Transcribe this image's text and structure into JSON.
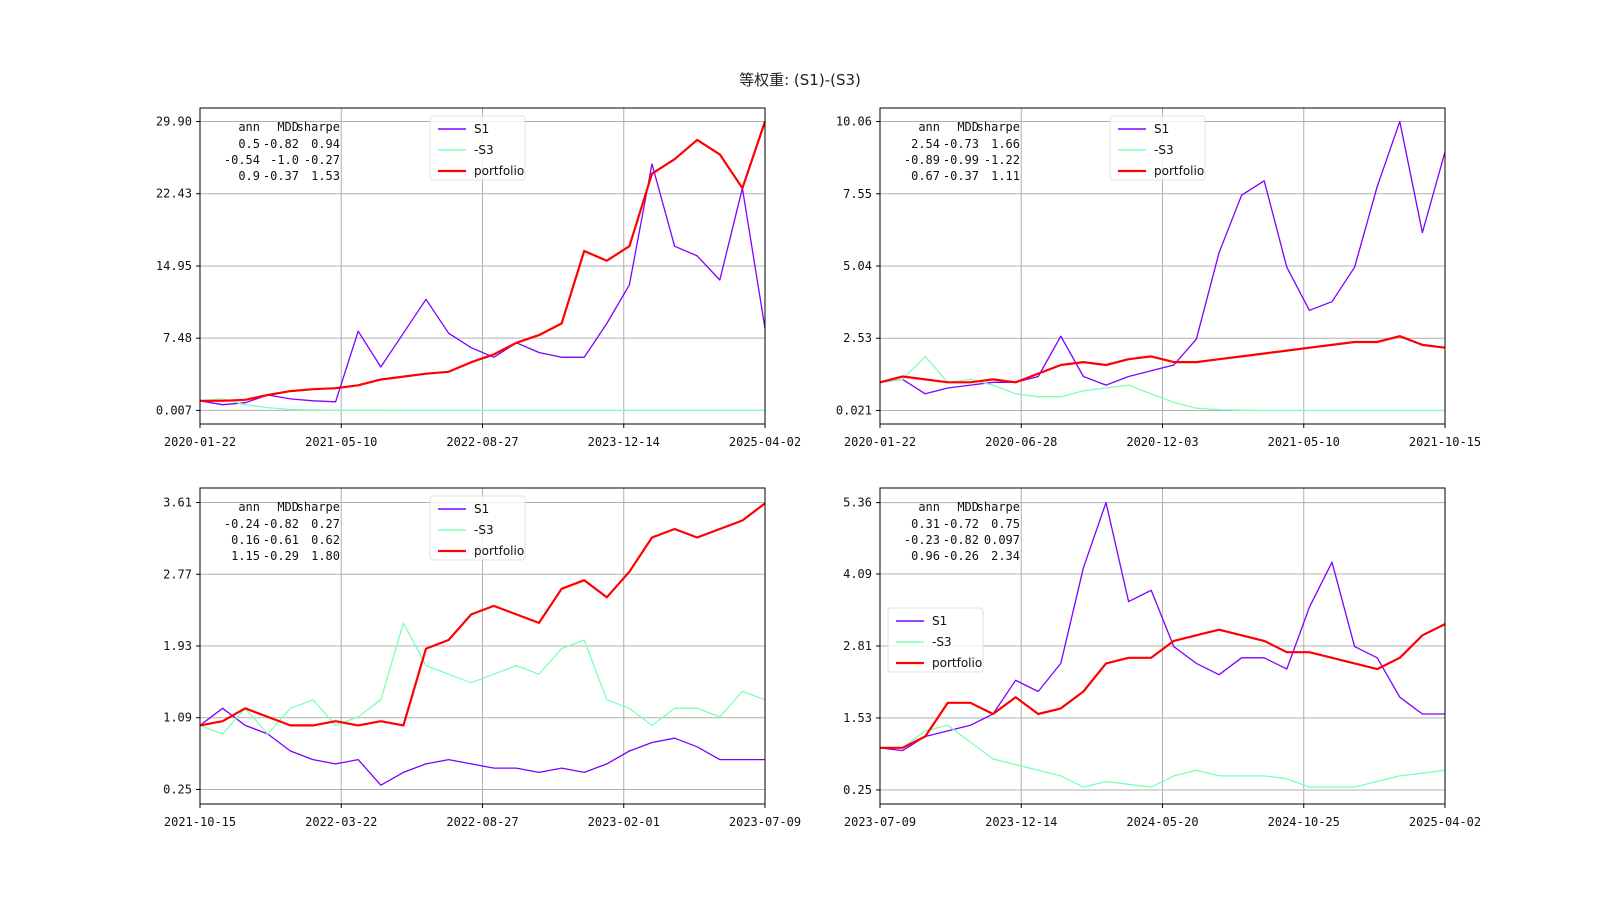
{
  "figure": {
    "title": "等权重: (S1)-(S3)"
  },
  "colors": {
    "S1": "#7f00ff",
    "-S3": "#80ffb4",
    "portfolio": "#ff0000"
  },
  "chart_data": [
    {
      "type": "line",
      "position": "top-left",
      "ylim": [
        -1.4,
        31.3
      ],
      "yticks": [
        0.007,
        7.48,
        14.95,
        22.43,
        29.9
      ],
      "ytick_labels": [
        "0.007",
        "7.48",
        "14.95",
        "22.43",
        "29.90"
      ],
      "xtick_labels": [
        "2020-01-22",
        "2021-05-10",
        "2022-08-27",
        "2023-12-14",
        "2025-04-02"
      ],
      "x": [
        0,
        0.04,
        0.08,
        0.12,
        0.16,
        0.2,
        0.24,
        0.28,
        0.32,
        0.36,
        0.4,
        0.44,
        0.48,
        0.52,
        0.56,
        0.6,
        0.64,
        0.68,
        0.72,
        0.76,
        0.8,
        0.84,
        0.88,
        0.92,
        0.96,
        1.0
      ],
      "series": [
        {
          "name": "S1",
          "values": [
            1.0,
            0.6,
            0.8,
            1.6,
            1.2,
            1.0,
            0.9,
            8.2,
            4.5,
            8.0,
            11.5,
            8.0,
            6.5,
            5.5,
            7.0,
            6.0,
            5.5,
            5.5,
            9.0,
            13.0,
            25.5,
            17.0,
            16.0,
            13.5,
            23.0,
            8.5
          ]
        },
        {
          "name": "-S3",
          "values": [
            1.0,
            1.2,
            0.6,
            0.3,
            0.1,
            0.05,
            0.03,
            0.02,
            0.02,
            0.01,
            0.01,
            0.01,
            0.01,
            0.01,
            0.01,
            0.01,
            0.01,
            0.01,
            0.01,
            0.01,
            0.01,
            0.01,
            0.01,
            0.01,
            0.01,
            0.01
          ]
        },
        {
          "name": "portfolio",
          "values": [
            1.0,
            1.0,
            1.1,
            1.6,
            2.0,
            2.2,
            2.3,
            2.6,
            3.2,
            3.5,
            3.8,
            4.0,
            5.0,
            5.8,
            7.0,
            7.8,
            9.0,
            16.5,
            15.5,
            17.0,
            24.5,
            26.0,
            28.0,
            26.5,
            23.0,
            29.9
          ]
        }
      ],
      "stats": {
        "header": [
          "ann",
          "MDD",
          "sharpe"
        ],
        "rows": [
          [
            "0.5",
            "-0.82",
            "0.94"
          ],
          [
            "-0.54",
            "-1.0",
            "-0.27"
          ],
          [
            "0.9",
            "-0.37",
            "1.53"
          ]
        ]
      },
      "legend": {
        "placement": "top-center",
        "labels": [
          "S1",
          "-S3",
          "portfolio"
        ]
      }
    },
    {
      "type": "line",
      "position": "top-right",
      "ylim": [
        -0.45,
        10.53
      ],
      "yticks": [
        0.021,
        2.53,
        5.04,
        7.55,
        10.06
      ],
      "ytick_labels": [
        "0.021",
        "2.53",
        "5.04",
        "7.55",
        "10.06"
      ],
      "xtick_labels": [
        "2020-01-22",
        "2020-06-28",
        "2020-12-03",
        "2021-05-10",
        "2021-10-15"
      ],
      "x": [
        0,
        0.04,
        0.08,
        0.12,
        0.16,
        0.2,
        0.24,
        0.28,
        0.32,
        0.36,
        0.4,
        0.44,
        0.48,
        0.52,
        0.56,
        0.6,
        0.64,
        0.68,
        0.72,
        0.76,
        0.8,
        0.84,
        0.88,
        0.92,
        0.96,
        1.0
      ],
      "series": [
        {
          "name": "S1",
          "values": [
            1.0,
            1.1,
            0.6,
            0.8,
            0.9,
            1.0,
            1.0,
            1.2,
            2.6,
            1.2,
            0.9,
            1.2,
            1.4,
            1.6,
            2.5,
            5.5,
            7.5,
            8.0,
            5.0,
            3.5,
            3.8,
            5.0,
            7.8,
            10.06,
            6.2,
            9.0
          ]
        },
        {
          "name": "-S3",
          "values": [
            1.0,
            1.1,
            1.9,
            1.0,
            1.1,
            0.9,
            0.6,
            0.5,
            0.5,
            0.7,
            0.8,
            0.9,
            0.6,
            0.3,
            0.1,
            0.05,
            0.03,
            0.02,
            0.02,
            0.02,
            0.02,
            0.02,
            0.02,
            0.02,
            0.02,
            0.02
          ]
        },
        {
          "name": "portfolio",
          "values": [
            1.0,
            1.2,
            1.1,
            1.0,
            1.0,
            1.1,
            1.0,
            1.3,
            1.6,
            1.7,
            1.6,
            1.8,
            1.9,
            1.7,
            1.7,
            1.8,
            1.9,
            2.0,
            2.1,
            2.2,
            2.3,
            2.4,
            2.4,
            2.6,
            2.3,
            2.2
          ]
        }
      ],
      "stats": {
        "header": [
          "ann",
          "MDD",
          "sharpe"
        ],
        "rows": [
          [
            "2.54",
            "-0.73",
            "1.66"
          ],
          [
            "-0.89",
            "-0.99",
            "-1.22"
          ],
          [
            "0.67",
            "-0.37",
            "1.11"
          ]
        ]
      },
      "legend": {
        "placement": "top-center",
        "labels": [
          "S1",
          "-S3",
          "portfolio"
        ]
      }
    },
    {
      "type": "line",
      "position": "bottom-left",
      "ylim": [
        0.08,
        3.78
      ],
      "yticks": [
        0.25,
        1.09,
        1.93,
        2.77,
        3.61
      ],
      "ytick_labels": [
        "0.25",
        "1.09",
        "1.93",
        "2.77",
        "3.61"
      ],
      "xtick_labels": [
        "2021-10-15",
        "2022-03-22",
        "2022-08-27",
        "2023-02-01",
        "2023-07-09"
      ],
      "x": [
        0,
        0.04,
        0.08,
        0.12,
        0.16,
        0.2,
        0.24,
        0.28,
        0.32,
        0.36,
        0.4,
        0.44,
        0.48,
        0.52,
        0.56,
        0.6,
        0.64,
        0.68,
        0.72,
        0.76,
        0.8,
        0.84,
        0.88,
        0.92,
        0.96,
        1.0
      ],
      "series": [
        {
          "name": "S1",
          "values": [
            1.0,
            1.2,
            1.0,
            0.9,
            0.7,
            0.6,
            0.55,
            0.6,
            0.3,
            0.45,
            0.55,
            0.6,
            0.55,
            0.5,
            0.5,
            0.45,
            0.5,
            0.45,
            0.55,
            0.7,
            0.8,
            0.85,
            0.75,
            0.6,
            0.6,
            0.6
          ]
        },
        {
          "name": "-S3",
          "values": [
            1.0,
            0.9,
            1.2,
            0.9,
            1.2,
            1.3,
            1.0,
            1.1,
            1.3,
            2.2,
            1.7,
            1.6,
            1.5,
            1.6,
            1.7,
            1.6,
            1.9,
            2.0,
            1.3,
            1.2,
            1.0,
            1.2,
            1.2,
            1.1,
            1.4,
            1.3
          ]
        },
        {
          "name": "portfolio",
          "values": [
            1.0,
            1.05,
            1.2,
            1.1,
            1.0,
            1.0,
            1.05,
            1.0,
            1.05,
            1.0,
            1.9,
            2.0,
            2.3,
            2.4,
            2.3,
            2.2,
            2.6,
            2.7,
            2.5,
            2.8,
            3.2,
            3.3,
            3.2,
            3.3,
            3.4,
            3.6
          ]
        }
      ],
      "stats": {
        "header": [
          "ann",
          "MDD",
          "sharpe"
        ],
        "rows": [
          [
            "-0.24",
            "-0.82",
            "0.27"
          ],
          [
            "0.16",
            "-0.61",
            "0.62"
          ],
          [
            "1.15",
            "-0.29",
            "1.80"
          ]
        ]
      },
      "legend": {
        "placement": "top-center",
        "labels": [
          "S1",
          "-S3",
          "portfolio"
        ]
      }
    },
    {
      "type": "line",
      "position": "bottom-right",
      "ylim": [
        0.0,
        5.62
      ],
      "yticks": [
        0.25,
        1.53,
        2.81,
        4.09,
        5.36
      ],
      "ytick_labels": [
        "0.25",
        "1.53",
        "2.81",
        "4.09",
        "5.36"
      ],
      "xtick_labels": [
        "2023-07-09",
        "2023-12-14",
        "2024-05-20",
        "2024-10-25",
        "2025-04-02"
      ],
      "x": [
        0,
        0.04,
        0.08,
        0.12,
        0.16,
        0.2,
        0.24,
        0.28,
        0.32,
        0.36,
        0.4,
        0.44,
        0.48,
        0.52,
        0.56,
        0.6,
        0.64,
        0.68,
        0.72,
        0.76,
        0.8,
        0.84,
        0.88,
        0.92,
        0.96,
        1.0
      ],
      "series": [
        {
          "name": "S1",
          "values": [
            1.0,
            0.95,
            1.2,
            1.3,
            1.4,
            1.6,
            2.2,
            2.0,
            2.5,
            4.2,
            5.36,
            3.6,
            3.8,
            2.8,
            2.5,
            2.3,
            2.6,
            2.6,
            2.4,
            3.5,
            4.3,
            2.8,
            2.6,
            1.9,
            1.6,
            1.6
          ]
        },
        {
          "name": "-S3",
          "values": [
            1.0,
            1.0,
            1.3,
            1.4,
            1.1,
            0.8,
            0.7,
            0.6,
            0.5,
            0.3,
            0.4,
            0.35,
            0.3,
            0.5,
            0.6,
            0.5,
            0.5,
            0.5,
            0.45,
            0.3,
            0.3,
            0.3,
            0.4,
            0.5,
            0.55,
            0.6
          ]
        },
        {
          "name": "portfolio",
          "values": [
            1.0,
            1.0,
            1.2,
            1.8,
            1.8,
            1.6,
            1.9,
            1.6,
            1.7,
            2.0,
            2.5,
            2.6,
            2.6,
            2.9,
            3.0,
            3.1,
            3.0,
            2.9,
            2.7,
            2.7,
            2.6,
            2.5,
            2.4,
            2.6,
            3.0,
            3.2
          ]
        }
      ],
      "stats": {
        "header": [
          "ann",
          "MDD",
          "sharpe"
        ],
        "rows": [
          [
            "0.31",
            "-0.72",
            "0.75"
          ],
          [
            "-0.23",
            "-0.82",
            "0.097"
          ],
          [
            "0.96",
            "-0.26",
            "2.34"
          ]
        ]
      },
      "legend": {
        "placement": "center-left",
        "labels": [
          "S1",
          "-S3",
          "portfolio"
        ]
      }
    }
  ]
}
